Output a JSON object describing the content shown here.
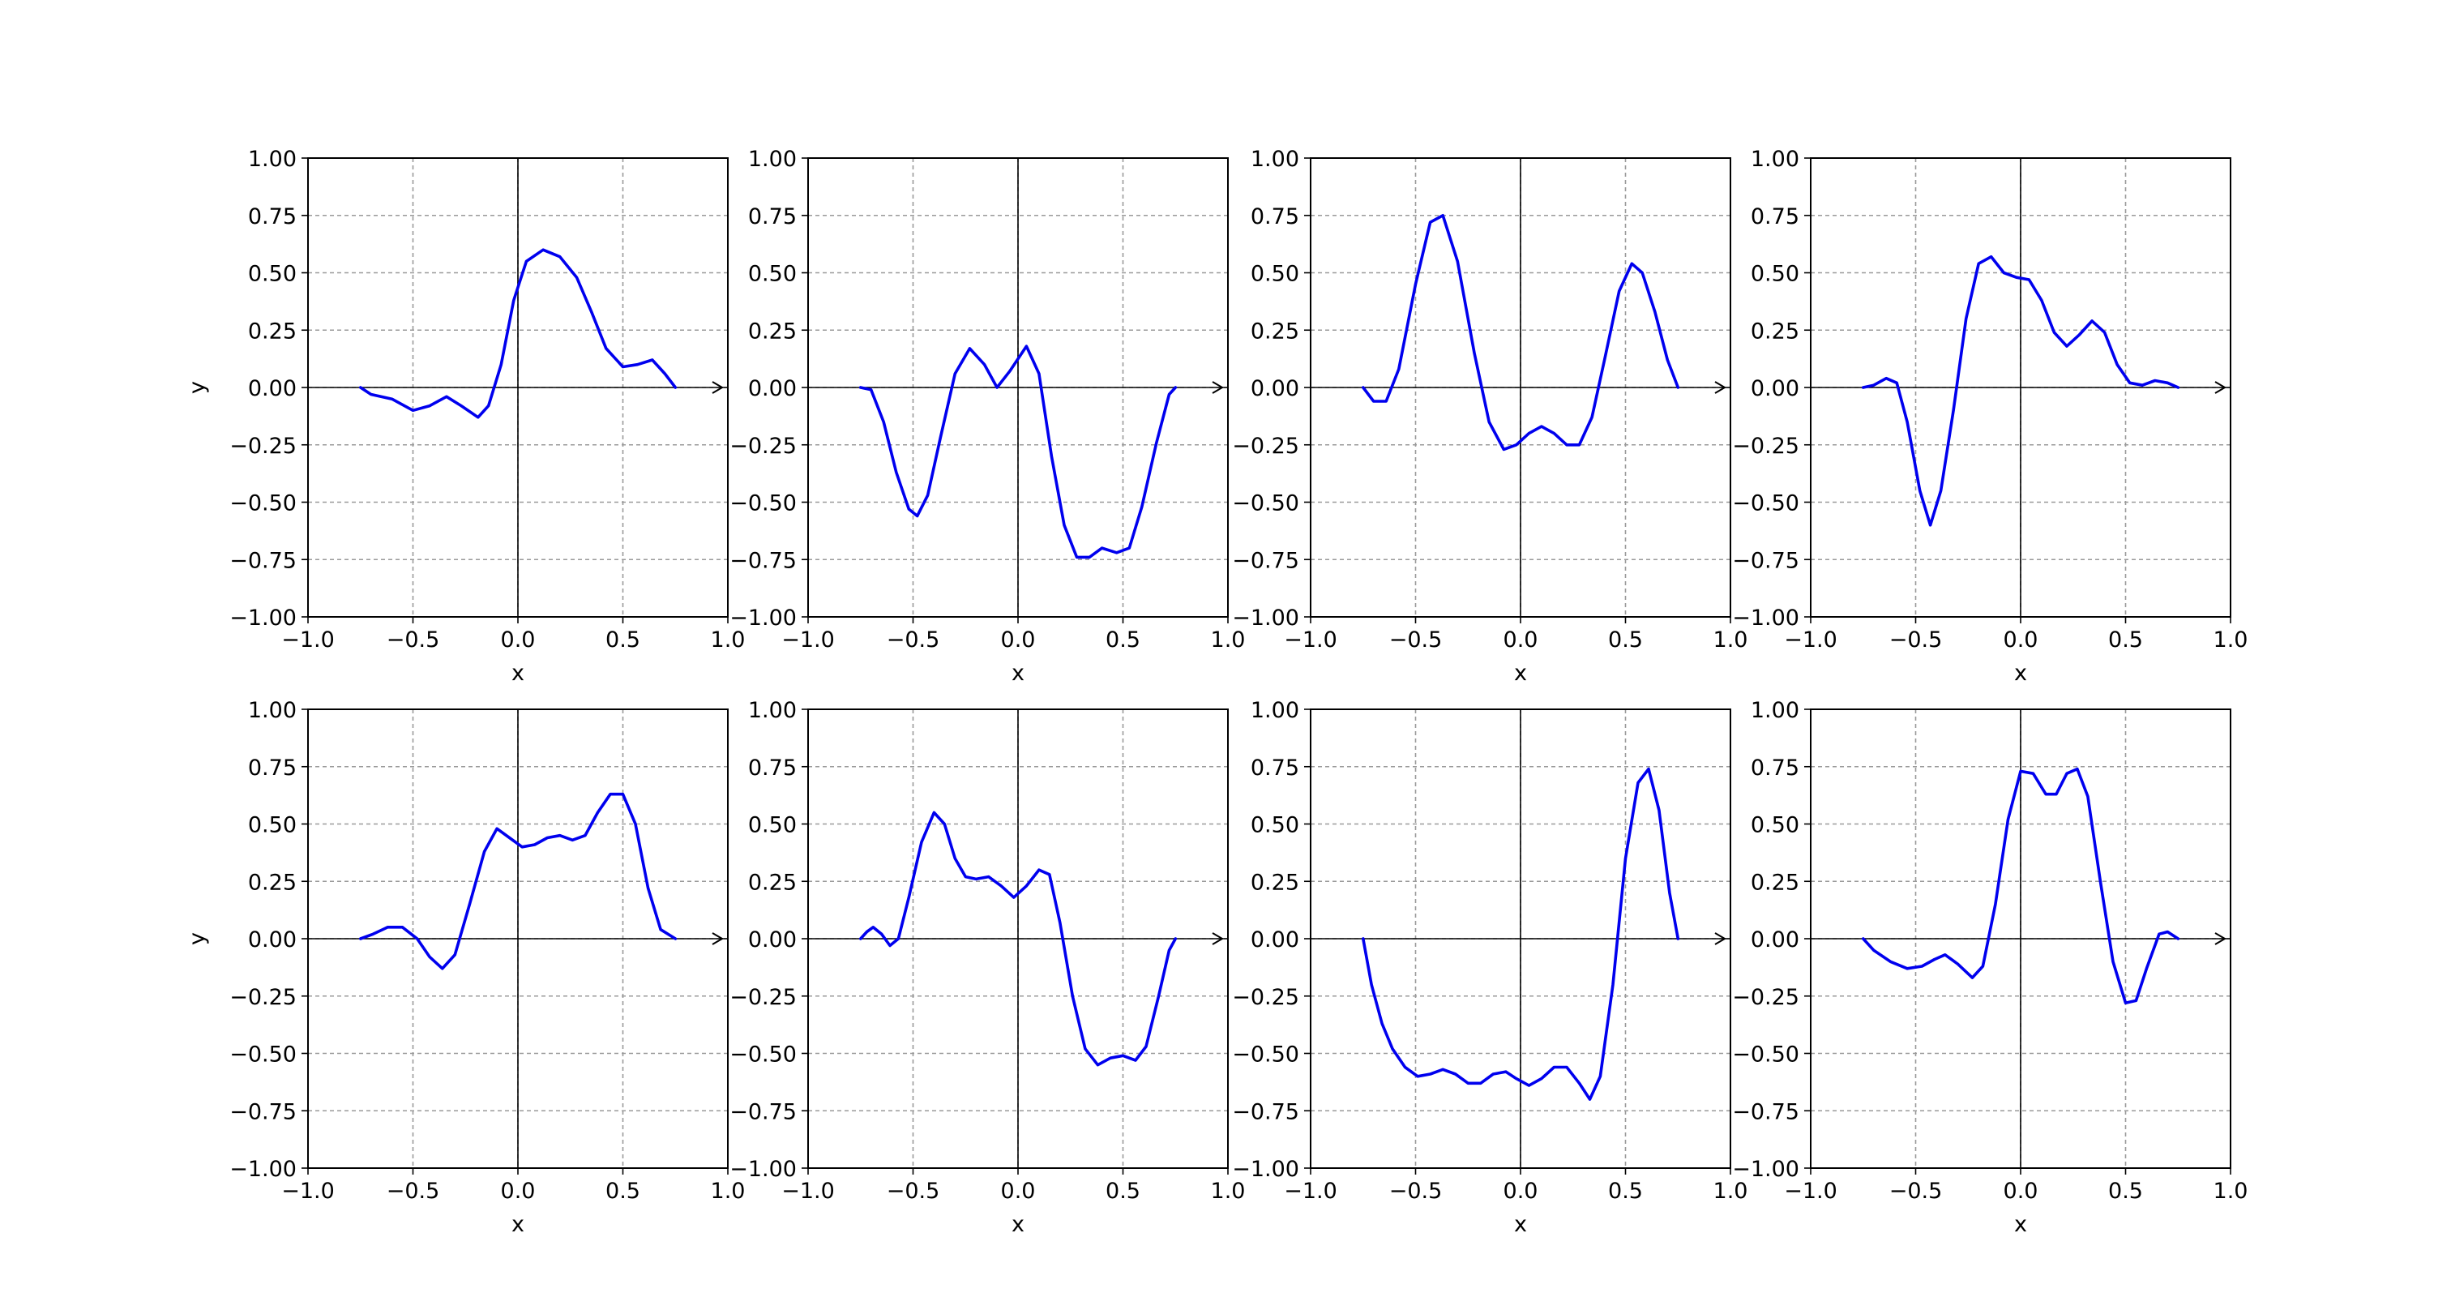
{
  "chart_data": {
    "type": "line",
    "layout": {
      "rows": 2,
      "cols": 4
    },
    "style": {
      "line_color": "#0000ee",
      "grid_color": "#9a9a9a",
      "grid": true,
      "grid_style": "dashed",
      "zero_axes": true,
      "arrow_at_x_end": true
    },
    "xlim": [
      -1.0,
      1.0
    ],
    "ylim": [
      -1.0,
      1.0
    ],
    "xticks": [
      "−1.0",
      "−0.5",
      "0.0",
      "0.5",
      "1.0"
    ],
    "xtick_values": [
      -1.0,
      -0.5,
      0.0,
      0.5,
      1.0
    ],
    "yticks": [
      "1.00",
      "0.75",
      "0.50",
      "0.25",
      "0.00",
      "−0.25",
      "−0.50",
      "−0.75",
      "−1.00"
    ],
    "ytick_values": [
      1.0,
      0.75,
      0.5,
      0.25,
      0.0,
      -0.25,
      -0.5,
      -0.75,
      -1.0
    ],
    "xlabel": "x",
    "ylabel": "y",
    "subplots": [
      {
        "row": 0,
        "col": 0,
        "show_ylabel": true,
        "points": [
          [
            -0.75,
            0.0
          ],
          [
            -0.7,
            -0.03
          ],
          [
            -0.6,
            -0.05
          ],
          [
            -0.5,
            -0.1
          ],
          [
            -0.42,
            -0.08
          ],
          [
            -0.34,
            -0.04
          ],
          [
            -0.27,
            -0.08
          ],
          [
            -0.19,
            -0.13
          ],
          [
            -0.14,
            -0.08
          ],
          [
            -0.08,
            0.1
          ],
          [
            -0.02,
            0.38
          ],
          [
            0.04,
            0.55
          ],
          [
            0.12,
            0.6
          ],
          [
            0.2,
            0.57
          ],
          [
            0.28,
            0.48
          ],
          [
            0.35,
            0.33
          ],
          [
            0.42,
            0.17
          ],
          [
            0.5,
            0.09
          ],
          [
            0.57,
            0.1
          ],
          [
            0.64,
            0.12
          ],
          [
            0.7,
            0.06
          ],
          [
            0.75,
            0.0
          ]
        ]
      },
      {
        "row": 0,
        "col": 1,
        "show_ylabel": false,
        "points": [
          [
            -0.75,
            0.0
          ],
          [
            -0.7,
            -0.01
          ],
          [
            -0.64,
            -0.15
          ],
          [
            -0.58,
            -0.37
          ],
          [
            -0.52,
            -0.53
          ],
          [
            -0.48,
            -0.56
          ],
          [
            -0.43,
            -0.47
          ],
          [
            -0.37,
            -0.22
          ],
          [
            -0.3,
            0.06
          ],
          [
            -0.23,
            0.17
          ],
          [
            -0.16,
            0.1
          ],
          [
            -0.1,
            0.0
          ],
          [
            -0.04,
            0.07
          ],
          [
            0.04,
            0.18
          ],
          [
            0.1,
            0.06
          ],
          [
            0.16,
            -0.3
          ],
          [
            0.22,
            -0.6
          ],
          [
            0.28,
            -0.74
          ],
          [
            0.34,
            -0.74
          ],
          [
            0.4,
            -0.7
          ],
          [
            0.47,
            -0.72
          ],
          [
            0.53,
            -0.7
          ],
          [
            0.59,
            -0.52
          ],
          [
            0.66,
            -0.24
          ],
          [
            0.72,
            -0.03
          ],
          [
            0.75,
            0.0
          ]
        ]
      },
      {
        "row": 0,
        "col": 2,
        "show_ylabel": false,
        "points": [
          [
            -0.75,
            0.0
          ],
          [
            -0.7,
            -0.06
          ],
          [
            -0.64,
            -0.06
          ],
          [
            -0.58,
            0.08
          ],
          [
            -0.5,
            0.45
          ],
          [
            -0.43,
            0.72
          ],
          [
            -0.37,
            0.75
          ],
          [
            -0.3,
            0.55
          ],
          [
            -0.22,
            0.15
          ],
          [
            -0.15,
            -0.15
          ],
          [
            -0.08,
            -0.27
          ],
          [
            -0.02,
            -0.25
          ],
          [
            0.04,
            -0.2
          ],
          [
            0.1,
            -0.17
          ],
          [
            0.16,
            -0.2
          ],
          [
            0.22,
            -0.25
          ],
          [
            0.28,
            -0.25
          ],
          [
            0.34,
            -0.13
          ],
          [
            0.4,
            0.12
          ],
          [
            0.47,
            0.42
          ],
          [
            0.53,
            0.54
          ],
          [
            0.58,
            0.5
          ],
          [
            0.64,
            0.33
          ],
          [
            0.7,
            0.12
          ],
          [
            0.75,
            0.0
          ]
        ]
      },
      {
        "row": 0,
        "col": 3,
        "show_ylabel": false,
        "points": [
          [
            -0.75,
            0.0
          ],
          [
            -0.7,
            0.01
          ],
          [
            -0.64,
            0.04
          ],
          [
            -0.59,
            0.02
          ],
          [
            -0.54,
            -0.15
          ],
          [
            -0.48,
            -0.45
          ],
          [
            -0.43,
            -0.6
          ],
          [
            -0.38,
            -0.45
          ],
          [
            -0.32,
            -0.1
          ],
          [
            -0.26,
            0.3
          ],
          [
            -0.2,
            0.54
          ],
          [
            -0.14,
            0.57
          ],
          [
            -0.08,
            0.5
          ],
          [
            -0.02,
            0.48
          ],
          [
            0.04,
            0.47
          ],
          [
            0.1,
            0.38
          ],
          [
            0.16,
            0.24
          ],
          [
            0.22,
            0.18
          ],
          [
            0.28,
            0.23
          ],
          [
            0.34,
            0.29
          ],
          [
            0.4,
            0.24
          ],
          [
            0.46,
            0.1
          ],
          [
            0.52,
            0.02
          ],
          [
            0.58,
            0.01
          ],
          [
            0.64,
            0.03
          ],
          [
            0.7,
            0.02
          ],
          [
            0.75,
            0.0
          ]
        ]
      },
      {
        "row": 1,
        "col": 0,
        "show_ylabel": true,
        "points": [
          [
            -0.75,
            0.0
          ],
          [
            -0.69,
            0.02
          ],
          [
            -0.62,
            0.05
          ],
          [
            -0.55,
            0.05
          ],
          [
            -0.48,
            0.0
          ],
          [
            -0.42,
            -0.08
          ],
          [
            -0.36,
            -0.13
          ],
          [
            -0.3,
            -0.07
          ],
          [
            -0.23,
            0.15
          ],
          [
            -0.16,
            0.38
          ],
          [
            -0.1,
            0.48
          ],
          [
            -0.04,
            0.44
          ],
          [
            0.02,
            0.4
          ],
          [
            0.08,
            0.41
          ],
          [
            0.14,
            0.44
          ],
          [
            0.2,
            0.45
          ],
          [
            0.26,
            0.43
          ],
          [
            0.32,
            0.45
          ],
          [
            0.38,
            0.55
          ],
          [
            0.44,
            0.63
          ],
          [
            0.5,
            0.63
          ],
          [
            0.56,
            0.5
          ],
          [
            0.62,
            0.22
          ],
          [
            0.68,
            0.04
          ],
          [
            0.75,
            0.0
          ]
        ]
      },
      {
        "row": 1,
        "col": 1,
        "show_ylabel": false,
        "points": [
          [
            -0.75,
            0.0
          ],
          [
            -0.72,
            0.03
          ],
          [
            -0.69,
            0.05
          ],
          [
            -0.65,
            0.02
          ],
          [
            -0.61,
            -0.03
          ],
          [
            -0.57,
            0.0
          ],
          [
            -0.52,
            0.18
          ],
          [
            -0.46,
            0.42
          ],
          [
            -0.4,
            0.55
          ],
          [
            -0.35,
            0.5
          ],
          [
            -0.3,
            0.35
          ],
          [
            -0.25,
            0.27
          ],
          [
            -0.2,
            0.26
          ],
          [
            -0.14,
            0.27
          ],
          [
            -0.08,
            0.23
          ],
          [
            -0.02,
            0.18
          ],
          [
            0.04,
            0.23
          ],
          [
            0.1,
            0.3
          ],
          [
            0.15,
            0.28
          ],
          [
            0.2,
            0.07
          ],
          [
            0.26,
            -0.25
          ],
          [
            0.32,
            -0.48
          ],
          [
            0.38,
            -0.55
          ],
          [
            0.44,
            -0.52
          ],
          [
            0.5,
            -0.51
          ],
          [
            0.56,
            -0.53
          ],
          [
            0.61,
            -0.47
          ],
          [
            0.67,
            -0.25
          ],
          [
            0.72,
            -0.05
          ],
          [
            0.75,
            0.0
          ]
        ]
      },
      {
        "row": 1,
        "col": 2,
        "show_ylabel": false,
        "points": [
          [
            -0.75,
            0.0
          ],
          [
            -0.71,
            -0.2
          ],
          [
            -0.66,
            -0.37
          ],
          [
            -0.61,
            -0.48
          ],
          [
            -0.55,
            -0.56
          ],
          [
            -0.49,
            -0.6
          ],
          [
            -0.43,
            -0.59
          ],
          [
            -0.37,
            -0.57
          ],
          [
            -0.31,
            -0.59
          ],
          [
            -0.25,
            -0.63
          ],
          [
            -0.19,
            -0.63
          ],
          [
            -0.13,
            -0.59
          ],
          [
            -0.07,
            -0.58
          ],
          [
            -0.02,
            -0.61
          ],
          [
            0.04,
            -0.64
          ],
          [
            0.1,
            -0.61
          ],
          [
            0.16,
            -0.56
          ],
          [
            0.22,
            -0.56
          ],
          [
            0.28,
            -0.63
          ],
          [
            0.33,
            -0.7
          ],
          [
            0.38,
            -0.6
          ],
          [
            0.44,
            -0.2
          ],
          [
            0.5,
            0.35
          ],
          [
            0.56,
            0.68
          ],
          [
            0.61,
            0.74
          ],
          [
            0.66,
            0.56
          ],
          [
            0.71,
            0.2
          ],
          [
            0.75,
            0.0
          ]
        ]
      },
      {
        "row": 1,
        "col": 3,
        "show_ylabel": false,
        "points": [
          [
            -0.75,
            0.0
          ],
          [
            -0.7,
            -0.05
          ],
          [
            -0.62,
            -0.1
          ],
          [
            -0.54,
            -0.13
          ],
          [
            -0.47,
            -0.12
          ],
          [
            -0.41,
            -0.09
          ],
          [
            -0.36,
            -0.07
          ],
          [
            -0.3,
            -0.11
          ],
          [
            -0.23,
            -0.17
          ],
          [
            -0.18,
            -0.12
          ],
          [
            -0.12,
            0.15
          ],
          [
            -0.06,
            0.52
          ],
          [
            0.0,
            0.73
          ],
          [
            0.06,
            0.72
          ],
          [
            0.12,
            0.63
          ],
          [
            0.17,
            0.63
          ],
          [
            0.22,
            0.72
          ],
          [
            0.27,
            0.74
          ],
          [
            0.32,
            0.62
          ],
          [
            0.38,
            0.25
          ],
          [
            0.44,
            -0.1
          ],
          [
            0.5,
            -0.28
          ],
          [
            0.55,
            -0.27
          ],
          [
            0.6,
            -0.13
          ],
          [
            0.66,
            0.02
          ],
          [
            0.7,
            0.03
          ],
          [
            0.75,
            0.0
          ]
        ]
      }
    ]
  }
}
